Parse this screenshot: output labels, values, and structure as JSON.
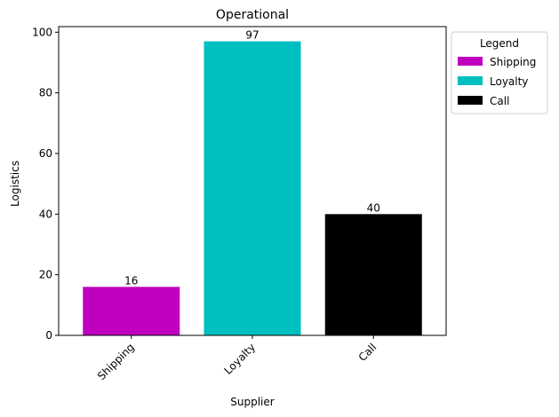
{
  "chart_data": {
    "type": "bar",
    "title": "Operational",
    "xlabel": "Supplier",
    "ylabel": "Logistics",
    "categories": [
      "Shipping",
      "Loyalty",
      "Call"
    ],
    "values": [
      16,
      97,
      40
    ],
    "colors": [
      "#bf00bf",
      "#00bfbf",
      "#000000"
    ],
    "data_labels": [
      "16",
      "97",
      "40"
    ],
    "ylim": [
      0,
      101.85
    ],
    "yticks": [
      0,
      20,
      40,
      60,
      80,
      100
    ],
    "legend": {
      "title": "Legend",
      "placement": "outside-right-top",
      "entries": [
        "Shipping",
        "Loyalty",
        "Call"
      ]
    },
    "grid": false
  }
}
